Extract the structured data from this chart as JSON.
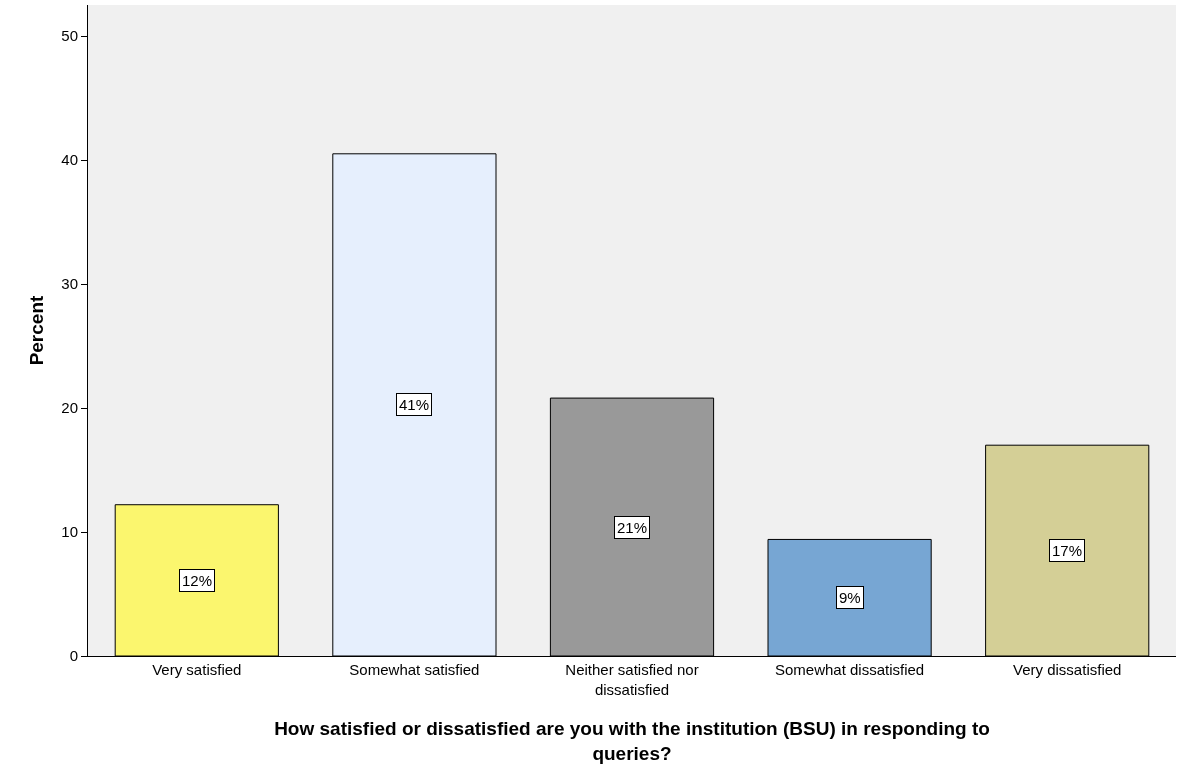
{
  "chart_data": {
    "type": "bar",
    "xlabel": "How satisfied or dissatisfied are you with the institution (BSU) in responding to queries?",
    "ylabel": "Percent",
    "categories": [
      "Very satisfied",
      "Somewhat satisfied",
      "Neither satisfied nor dissatisfied",
      "Somewhat dissatisfied",
      "Very dissatisfied"
    ],
    "values": [
      12.2,
      40.5,
      20.8,
      9.4,
      17.0
    ],
    "colors": [
      "#fbf66e",
      "#e6effd",
      "#999999",
      "#77a6d3",
      "#d4cf96"
    ],
    "value_labels": [
      "12%",
      "41%",
      "21%",
      "9%",
      "17%"
    ],
    "ylim": [
      0,
      52.5
    ],
    "yticks": [
      0,
      10,
      20,
      30,
      40,
      50
    ],
    "grid": false
  }
}
